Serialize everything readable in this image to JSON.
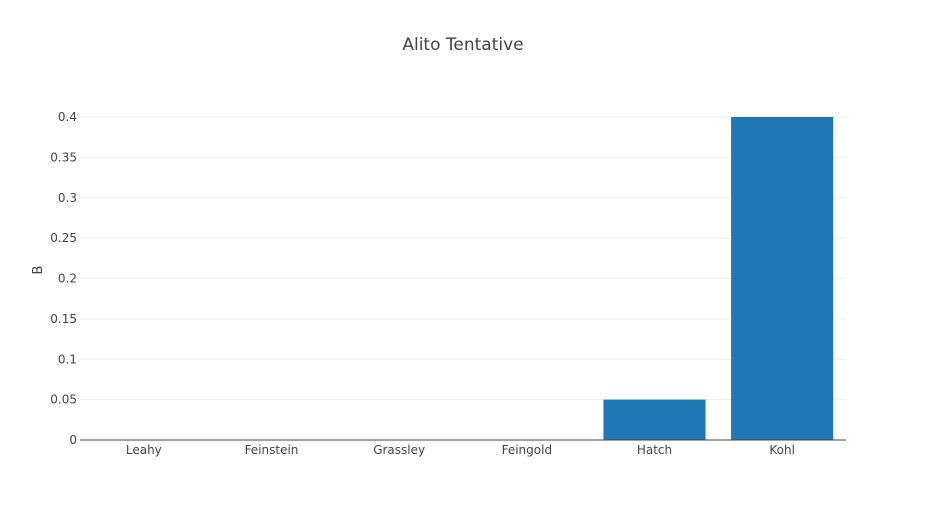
{
  "chart_data": {
    "type": "bar",
    "title": "Alito Tentative",
    "xlabel": "",
    "ylabel": "B",
    "categories": [
      "Leahy",
      "Feinstein",
      "Grassley",
      "Feingold",
      "Hatch",
      "Kohl"
    ],
    "values": [
      0,
      0,
      0,
      0,
      0.05,
      0.4
    ],
    "ylim": [
      0,
      0.4
    ],
    "yticks": [
      0,
      0.05,
      0.1,
      0.15,
      0.2,
      0.25,
      0.3,
      0.35,
      0.4
    ],
    "ytick_labels": [
      "0",
      "0.05",
      "0.1",
      "0.15",
      "0.2",
      "0.25",
      "0.3",
      "0.35",
      "0.4"
    ],
    "bar_color": "#1f77b4",
    "grid": true,
    "legend": "none"
  }
}
